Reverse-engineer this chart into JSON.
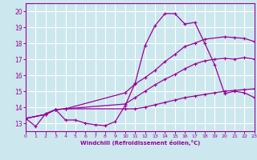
{
  "xlabel": "Windchill (Refroidissement éolien,°C)",
  "background_color": "#cce8ee",
  "grid_color": "#ffffff",
  "line_color": "#990099",
  "xlim": [
    0,
    23
  ],
  "ylim": [
    12.5,
    20.5
  ],
  "xticks": [
    0,
    1,
    2,
    3,
    4,
    5,
    6,
    7,
    8,
    9,
    10,
    11,
    12,
    13,
    14,
    15,
    16,
    17,
    18,
    19,
    20,
    21,
    22,
    23
  ],
  "yticks": [
    13,
    14,
    15,
    16,
    17,
    18,
    19,
    20
  ],
  "line1_x": [
    0,
    1,
    2,
    3,
    4,
    5,
    6,
    7,
    8,
    9,
    10,
    11,
    12,
    13,
    14,
    15,
    16,
    17,
    18,
    19,
    20,
    21,
    22,
    23
  ],
  "line1_y": [
    13.3,
    12.8,
    13.6,
    13.85,
    13.2,
    13.2,
    13.0,
    12.9,
    12.85,
    13.1,
    14.1,
    15.5,
    17.85,
    19.1,
    19.85,
    19.85,
    19.2,
    19.3,
    18.0,
    16.65,
    14.85,
    15.0,
    14.9,
    14.6
  ],
  "line2_x": [
    0,
    2,
    3,
    4,
    10,
    11,
    12,
    13,
    14,
    15,
    16,
    17,
    18,
    20,
    21,
    22,
    23
  ],
  "line2_y": [
    13.3,
    13.55,
    13.85,
    13.9,
    14.9,
    15.45,
    15.85,
    16.3,
    16.85,
    17.3,
    17.8,
    18.0,
    18.25,
    18.4,
    18.35,
    18.3,
    18.1
  ],
  "line3_x": [
    0,
    2,
    3,
    4,
    10,
    11,
    12,
    13,
    14,
    15,
    16,
    17,
    18,
    19,
    20,
    21,
    22,
    23
  ],
  "line3_y": [
    13.3,
    13.55,
    13.85,
    13.9,
    14.2,
    14.6,
    15.0,
    15.4,
    15.75,
    16.05,
    16.4,
    16.7,
    16.9,
    17.0,
    17.05,
    17.0,
    17.1,
    17.0
  ],
  "line4_x": [
    0,
    2,
    3,
    4,
    10,
    11,
    12,
    13,
    14,
    15,
    16,
    17,
    18,
    19,
    20,
    21,
    22,
    23
  ],
  "line4_y": [
    13.3,
    13.55,
    13.85,
    13.9,
    13.9,
    13.9,
    14.0,
    14.15,
    14.3,
    14.45,
    14.6,
    14.7,
    14.8,
    14.9,
    15.0,
    15.05,
    15.1,
    15.15
  ]
}
